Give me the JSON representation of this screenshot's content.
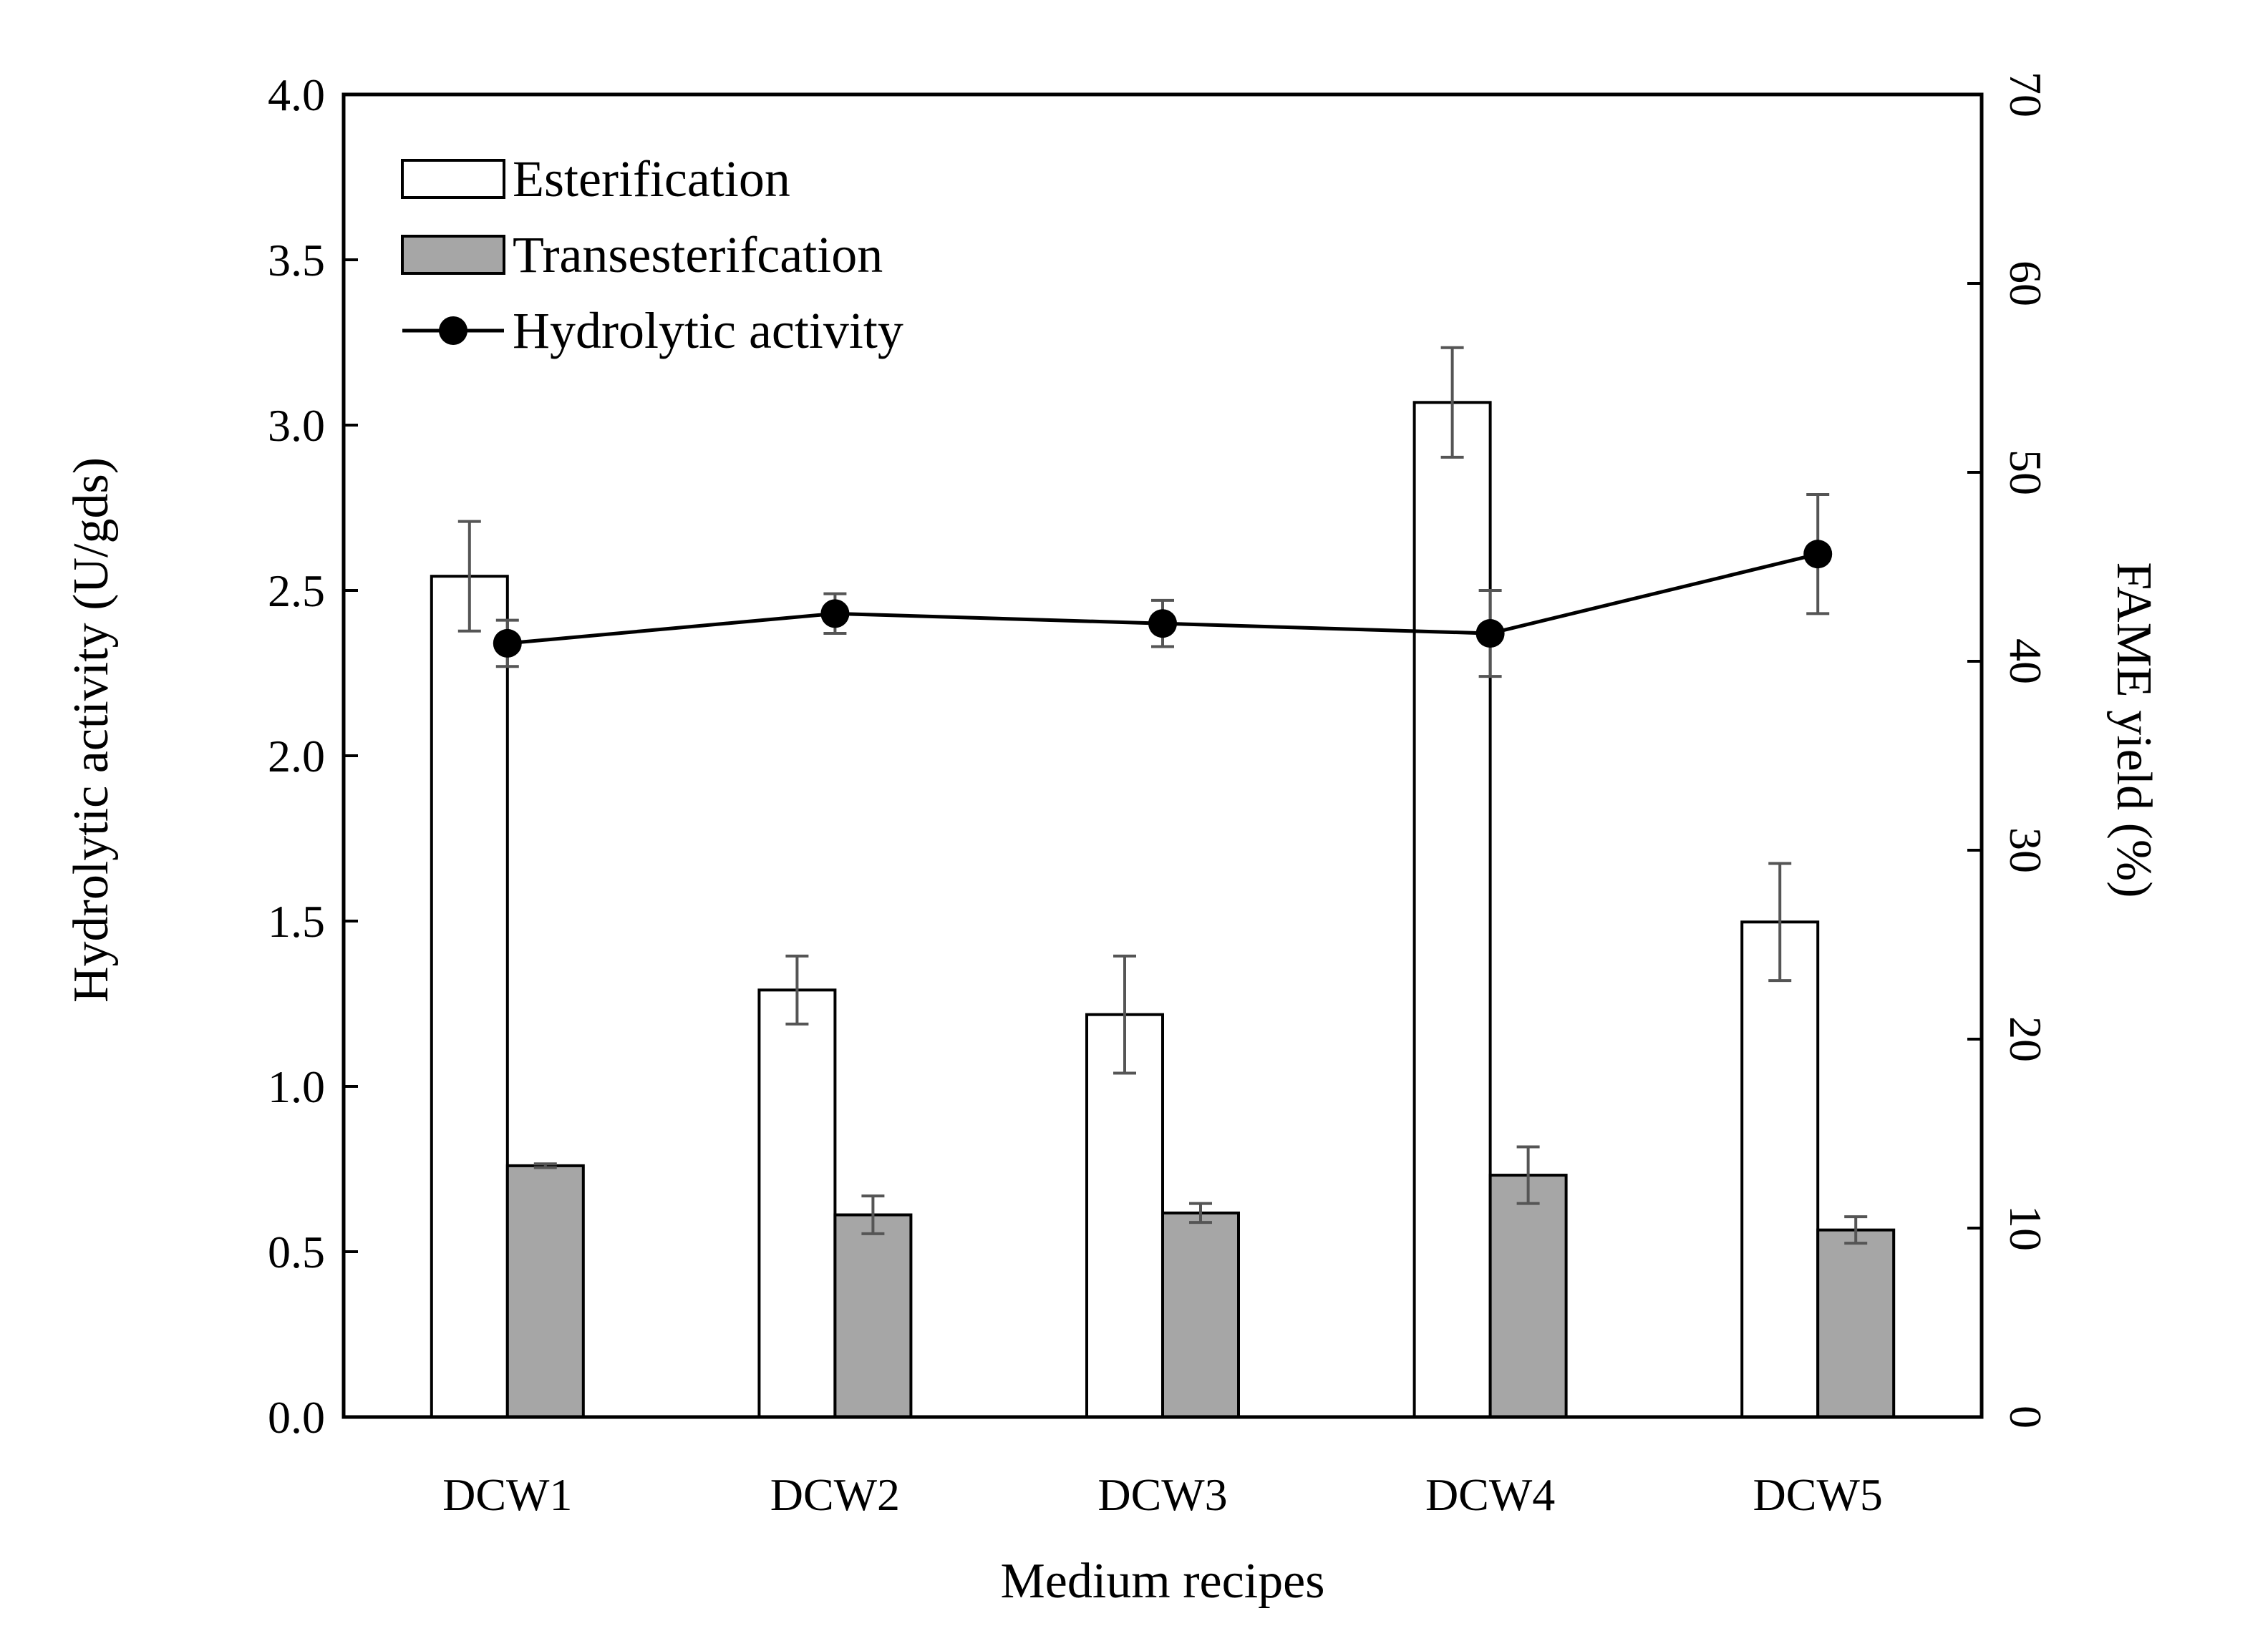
{
  "chart_data": {
    "type": "bar",
    "title": "",
    "xlabel": "Medium recipes",
    "ylabel_left": "Hydrolytic activity (U/gds)",
    "ylabel_right": "FAME yield (%)",
    "categories": [
      "DCW1",
      "DCW2",
      "DCW3",
      "DCW4",
      "DCW5"
    ],
    "left_axis": {
      "range": [
        0,
        4.0
      ],
      "ticks": [
        0,
        0.5,
        1.0,
        1.5,
        2.0,
        2.5,
        3.0,
        3.5,
        4.0
      ],
      "tick_labels": [
        "0.0",
        "0.5",
        "1.0",
        "1.5",
        "2.0",
        "2.5",
        "3.0",
        "3.5",
        "4.0"
      ]
    },
    "right_axis": {
      "range": [
        0,
        70
      ],
      "ticks": [
        0,
        10,
        20,
        30,
        40,
        50,
        60,
        70
      ],
      "tick_labels": [
        "0",
        "10",
        "20",
        "30",
        "40",
        "50",
        "60",
        "70"
      ]
    },
    "series": [
      {
        "name": "Esterification",
        "kind": "bar",
        "axis": "right",
        "fill": "#ffffff",
        "values": [
          44.5,
          22.6,
          21.3,
          53.7,
          26.2
        ],
        "errors": [
          2.9,
          1.8,
          3.1,
          2.9,
          3.1
        ]
      },
      {
        "name": "Transesterifcation",
        "kind": "bar",
        "axis": "right",
        "fill": "#a6a6a6",
        "values": [
          13.3,
          10.7,
          10.8,
          12.8,
          9.9
        ],
        "errors": [
          0.1,
          1.0,
          0.5,
          1.5,
          0.7
        ]
      },
      {
        "name": "Hydrolytic activity",
        "kind": "line",
        "axis": "left",
        "color": "#000000",
        "values": [
          2.34,
          2.43,
          2.4,
          2.37,
          2.61
        ],
        "errors": [
          0.07,
          0.06,
          0.07,
          0.13,
          0.18
        ]
      }
    ],
    "legend_position": "top-left",
    "grid": false
  }
}
